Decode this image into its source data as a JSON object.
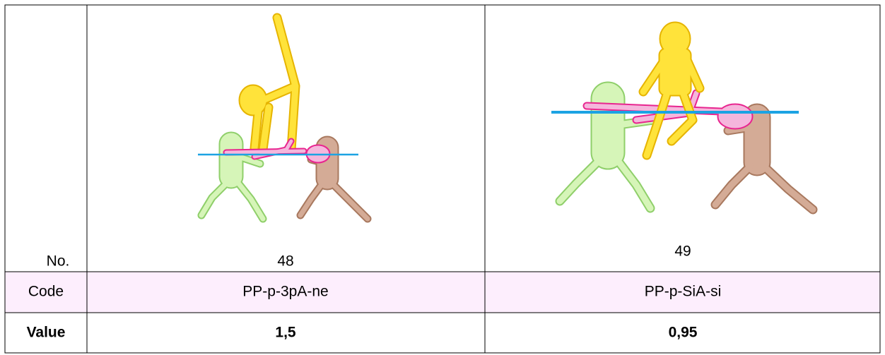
{
  "table": {
    "rows": [
      [
        "No.",
        "48",
        "49"
      ],
      [
        "Code",
        "PP-p-3pA-ne",
        "PP-p-SiA-si"
      ],
      [
        "Value",
        "1,5",
        "0,95"
      ]
    ]
  }
}
